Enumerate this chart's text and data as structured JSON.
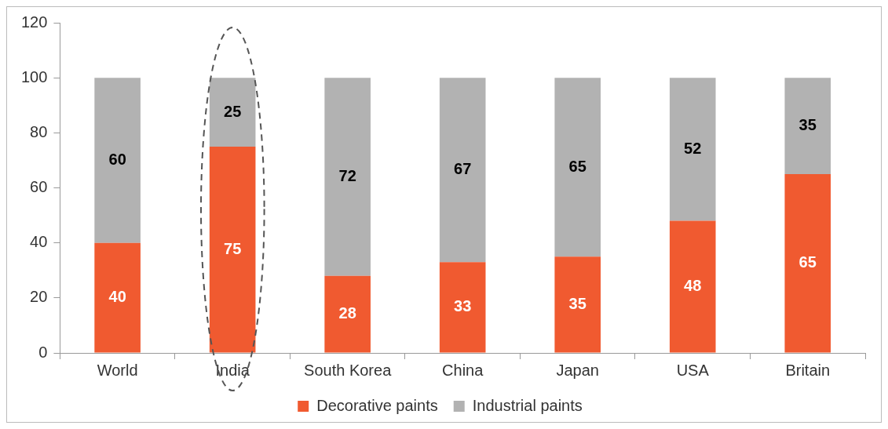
{
  "chart_data": {
    "type": "bar",
    "stacked": true,
    "categories": [
      "World",
      "India",
      "South Korea",
      "China",
      "Japan",
      "USA",
      "Britain"
    ],
    "series": [
      {
        "name": "Decorative paints",
        "color": "#f05a30",
        "values": [
          40,
          75,
          28,
          33,
          35,
          48,
          65
        ]
      },
      {
        "name": "Industrial paints",
        "color": "#b2b2b2",
        "values": [
          60,
          25,
          72,
          67,
          65,
          52,
          35
        ]
      }
    ],
    "ylim": [
      0,
      120
    ],
    "yticks": [
      0,
      20,
      40,
      60,
      80,
      100,
      120
    ],
    "grid": false,
    "legend": "bottom",
    "data_labels": true
  }
}
